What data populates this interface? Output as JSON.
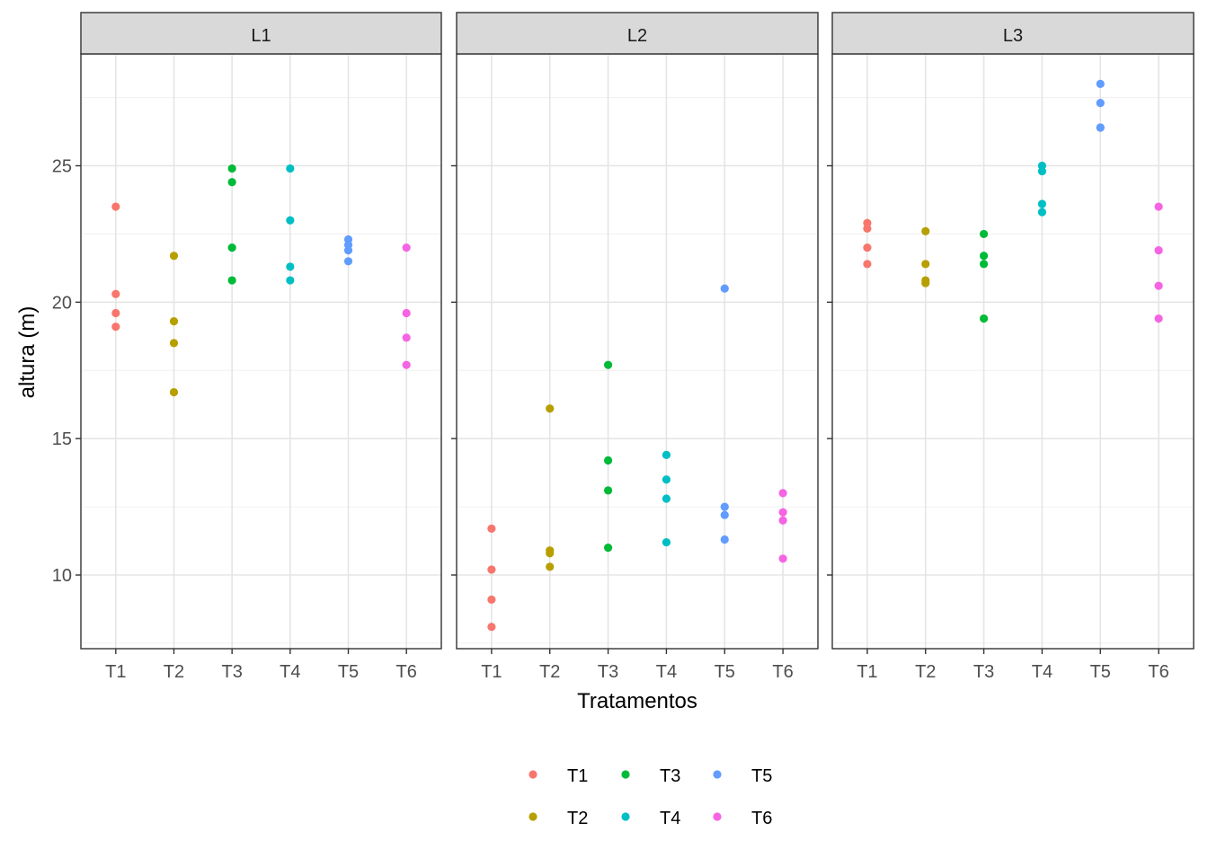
{
  "chart_data": {
    "type": "scatter",
    "facet_by": "local",
    "facets": [
      "L1",
      "L2",
      "L3"
    ],
    "categories": [
      "T1",
      "T2",
      "T3",
      "T4",
      "T5",
      "T6"
    ],
    "xlabel": "Tratamentos",
    "ylabel": "altura (m)",
    "ylim": [
      7.3,
      29.1
    ],
    "yticks": [
      10,
      15,
      20,
      25
    ],
    "grid": true,
    "legend_position": "bottom",
    "legend": [
      {
        "label": "T1",
        "color": "#F8766D"
      },
      {
        "label": "T2",
        "color": "#B79F00"
      },
      {
        "label": "T3",
        "color": "#00BA38"
      },
      {
        "label": "T4",
        "color": "#00BFC4"
      },
      {
        "label": "T5",
        "color": "#619CFF"
      },
      {
        "label": "T6",
        "color": "#F564E3"
      }
    ],
    "series": [
      {
        "facet": "L1",
        "values": {
          "T1": [
            23.5,
            20.3,
            19.6,
            19.1
          ],
          "T2": [
            21.7,
            19.3,
            18.5,
            16.7
          ],
          "T3": [
            24.9,
            24.4,
            22.0,
            20.8
          ],
          "T4": [
            24.9,
            23.0,
            21.3,
            20.8
          ],
          "T5": [
            22.3,
            22.1,
            21.9,
            21.5
          ],
          "T6": [
            22.0,
            19.6,
            18.7,
            17.7
          ]
        }
      },
      {
        "facet": "L2",
        "values": {
          "T1": [
            11.7,
            10.2,
            9.1,
            8.1
          ],
          "T2": [
            16.1,
            10.9,
            10.8,
            10.3
          ],
          "T3": [
            17.7,
            14.2,
            13.1,
            11.0
          ],
          "T4": [
            14.4,
            13.5,
            12.8,
            11.2
          ],
          "T5": [
            20.5,
            12.5,
            12.2,
            11.3
          ],
          "T6": [
            13.0,
            12.3,
            12.0,
            10.6
          ]
        }
      },
      {
        "facet": "L3",
        "values": {
          "T1": [
            22.9,
            22.7,
            22.0,
            21.4
          ],
          "T2": [
            22.6,
            21.4,
            20.8,
            20.7
          ],
          "T3": [
            22.5,
            21.7,
            21.4,
            19.4
          ],
          "T4": [
            25.0,
            24.8,
            23.6,
            23.3
          ],
          "T5": [
            28.0,
            27.3,
            26.4,
            26.4
          ],
          "T6": [
            23.5,
            21.9,
            20.6,
            19.4
          ]
        }
      }
    ]
  }
}
